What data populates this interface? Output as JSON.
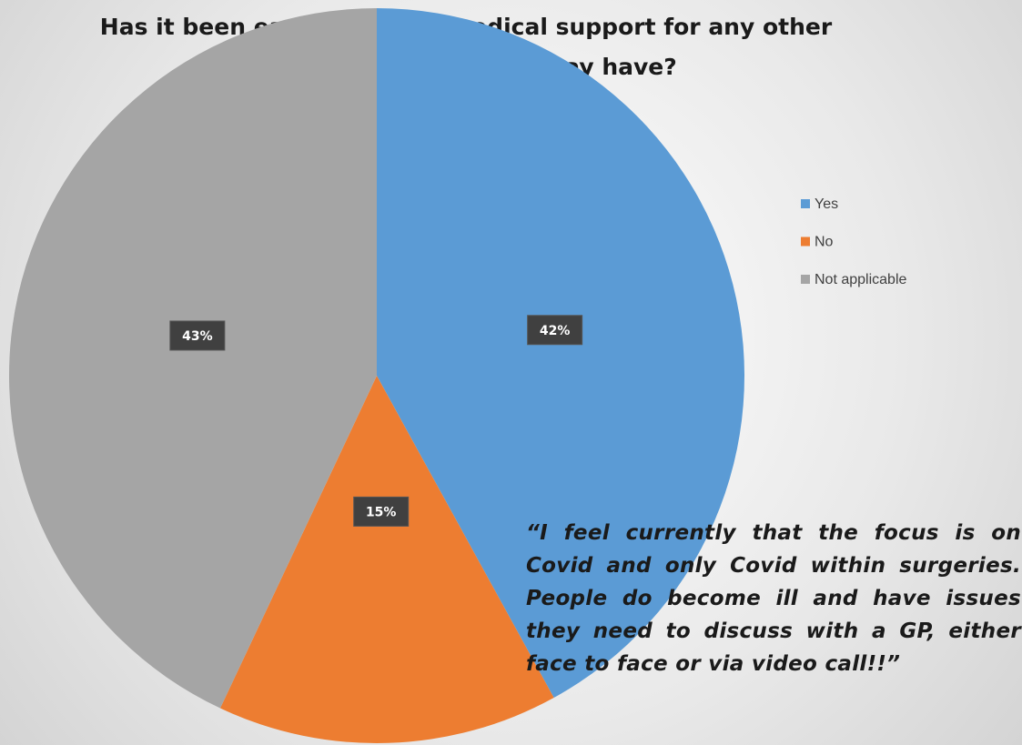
{
  "chart_data": {
    "type": "pie",
    "title": "Has it been easy to access medical support for any other health conditions you may have?",
    "categories": [
      "Yes",
      "No",
      "Not applicable"
    ],
    "values": [
      42,
      15,
      43
    ],
    "value_labels": [
      "42%",
      "15%",
      "43%"
    ],
    "colors": [
      "#5b9bd5",
      "#ed7d31",
      "#a5a5a5"
    ],
    "legend": "right",
    "annotation": "“I feel currently that the focus is on Covid and only Covid within surgeries. People do become ill and have issues they need to discuss with a GP, either face to face or via video call!!”"
  }
}
